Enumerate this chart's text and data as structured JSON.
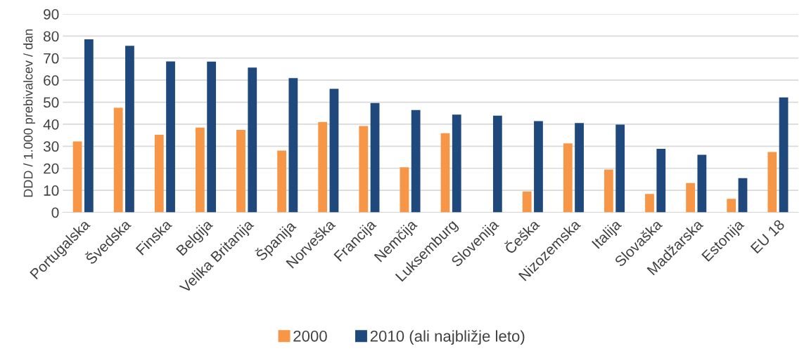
{
  "chart_data": {
    "type": "bar",
    "ylabel": "DDD / 1.000 prebivalcev / dan",
    "categories": [
      "Portugalska",
      "Švedska",
      "Finska",
      "Belgija",
      "Velika Britanija",
      "Španija",
      "Norveška",
      "Francija",
      "Nemčija",
      "Luksemburg",
      "Slovenija",
      "Češka",
      "Nizozemska",
      "Italija",
      "Slovaška",
      "Madžarska",
      "Estonija",
      "EU 18"
    ],
    "series": [
      {
        "name": "2000",
        "color": "#f79646",
        "values": [
          32.2,
          47.5,
          35.2,
          38.5,
          37.4,
          28.0,
          41.0,
          39.2,
          20.5,
          35.9,
          null,
          9.5,
          31.3,
          19.4,
          8.4,
          13.3,
          6.1,
          27.4
        ]
      },
      {
        "name": "2010 (ali najbližje leto)",
        "color": "#1f497d",
        "values": [
          78.5,
          75.6,
          68.5,
          68.4,
          65.7,
          60.9,
          56.1,
          49.6,
          46.4,
          44.4,
          43.9,
          41.4,
          40.5,
          39.8,
          28.8,
          26.1,
          15.5,
          52.2
        ]
      }
    ],
    "ylim": [
      0,
      90
    ],
    "yticks": [
      0,
      10,
      20,
      30,
      40,
      50,
      60,
      70,
      80,
      90
    ],
    "grid": "y",
    "legend": "bottom"
  }
}
